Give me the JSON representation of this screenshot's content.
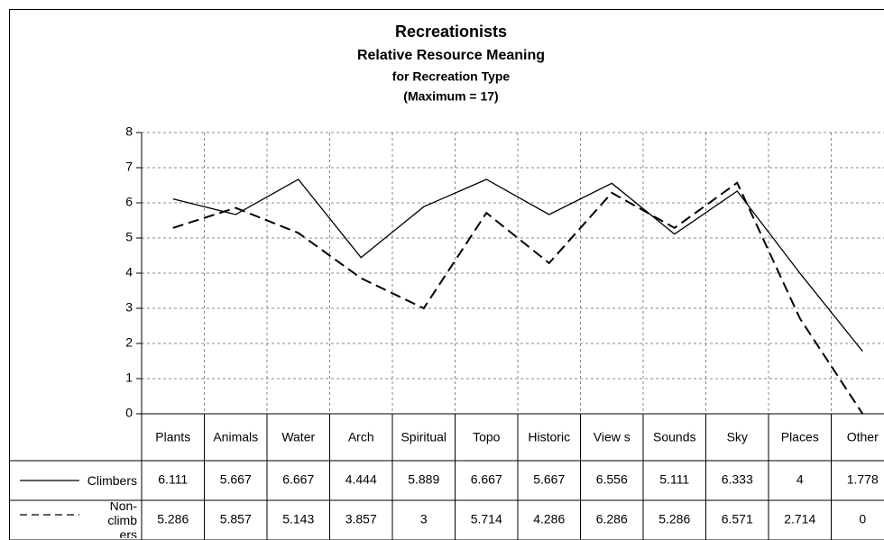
{
  "chart_data": {
    "type": "line",
    "title": "Recreationists",
    "subtitle": "Relative Resource Meaning",
    "subtitle2": "for Recreation Type",
    "subtitle3": "(Maximum = 17)",
    "categories": [
      "Plants",
      "Animals",
      "Water",
      "Arch",
      "Spiritual",
      "Topo",
      "Historic",
      "View s",
      "Sounds",
      "Sky",
      "Places",
      "Other"
    ],
    "series": [
      {
        "name": "Climbers",
        "color": "#000000",
        "dash": "solid",
        "values": [
          6.111,
          5.667,
          6.667,
          4.444,
          5.889,
          6.667,
          5.667,
          6.556,
          5.111,
          6.333,
          4,
          1.778
        ],
        "label_colors": [
          "#c0504d",
          "#000000",
          "#c0504d",
          "#000000",
          "#c0504d",
          "#000000",
          "#000000",
          "#c0504d",
          "#000000",
          "#000000",
          "#000000",
          "#000000"
        ]
      },
      {
        "name": "Non-climbers",
        "color": "#000000",
        "dash": "dashed",
        "values": [
          5.286,
          5.857,
          5.143,
          3.857,
          3,
          5.714,
          4.286,
          6.286,
          5.286,
          6.571,
          2.714,
          0
        ],
        "label_colors": [
          "#c0504d",
          "#000000",
          "#c0504d",
          "#000000",
          "#c0504d",
          "#000000",
          "#000000",
          "#c0504d",
          "#000000",
          "#000000",
          "#000000",
          "#000000"
        ]
      }
    ],
    "ylim": [
      0,
      8
    ],
    "yticks": [
      0,
      1,
      2,
      3,
      4,
      5,
      6,
      7,
      8
    ],
    "grid": true,
    "data_table": true
  }
}
